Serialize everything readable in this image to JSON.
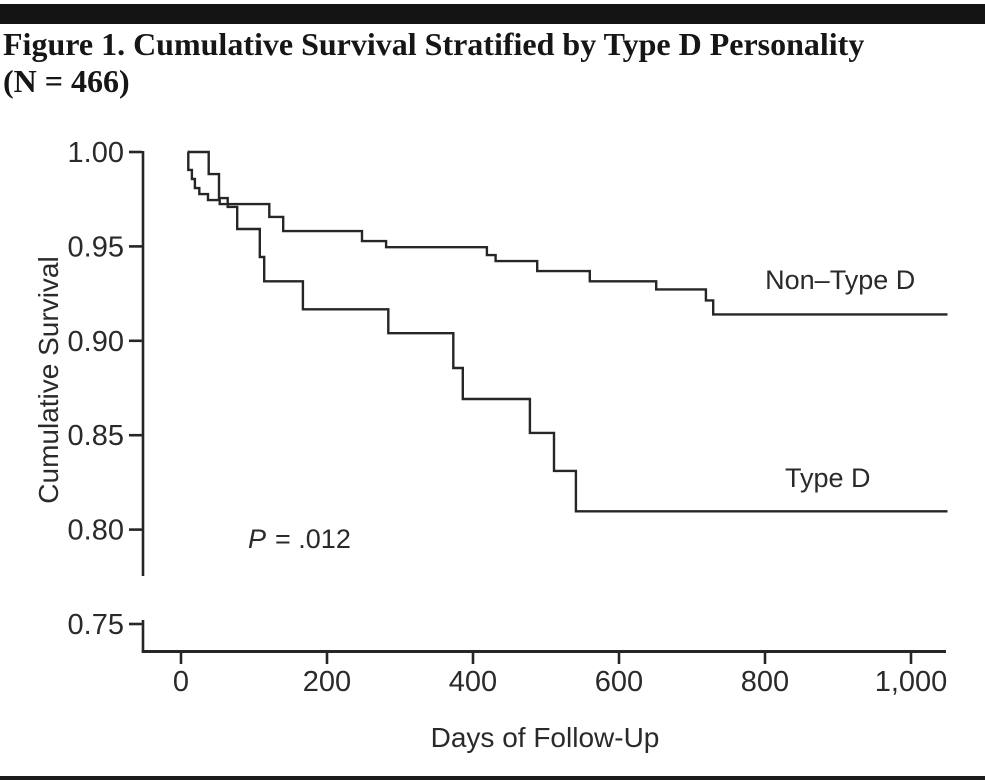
{
  "figure": {
    "title_line1": "Figure 1. Cumulative Survival Stratified by Type D Personality",
    "title_line2": "(N = 466)"
  },
  "chart_data": {
    "type": "line",
    "subtype": "kaplan_meier_step",
    "title": "Figure 1. Cumulative Survival Stratified by Type D Personality (N = 466)",
    "xlabel": "Days of Follow-Up",
    "ylabel": "Cumulative Survival",
    "xlim": [
      -52,
      1055
    ],
    "ylim": [
      0.737,
      1.003
    ],
    "grid": false,
    "legend_position": "inline-labels",
    "x_ticks": [
      0,
      200,
      400,
      600,
      800,
      1000
    ],
    "x_tick_labels": [
      "0",
      "200",
      "400",
      "600",
      "800",
      "1,000"
    ],
    "y_ticks": [
      1.0,
      0.95,
      0.9,
      0.85,
      0.8,
      0.75
    ],
    "y_tick_labels": [
      "1.00",
      "0.95",
      "0.90",
      "0.85",
      "0.80",
      "0.75"
    ],
    "annotation": {
      "p": "P",
      "value": "= .012"
    },
    "end_day": 1050,
    "series": [
      {
        "name": "Non–Type D",
        "label_anchor": {
          "day": 903,
          "value": 0.9327
        },
        "points": [
          [
            9,
            1.0
          ],
          [
            10,
            0.9905
          ],
          [
            15,
            0.9857
          ],
          [
            19,
            0.9809
          ],
          [
            25,
            0.9777
          ],
          [
            37,
            0.9745
          ],
          [
            53,
            0.9724
          ],
          [
            121,
            0.9656
          ],
          [
            140,
            0.9581
          ],
          [
            248,
            0.9528
          ],
          [
            281,
            0.9496
          ],
          [
            419,
            0.9454
          ],
          [
            431,
            0.9422
          ],
          [
            488,
            0.9369
          ],
          [
            560,
            0.9315
          ],
          [
            651,
            0.9272
          ],
          [
            719,
            0.9214
          ],
          [
            729,
            0.914
          ]
        ]
      },
      {
        "name": "Type D",
        "label_anchor": {
          "day": 886,
          "value": 0.8279
        },
        "points": [
          [
            9,
            1.0
          ],
          [
            38,
            0.9883
          ],
          [
            52,
            0.9756
          ],
          [
            64,
            0.9709
          ],
          [
            77,
            0.9592
          ],
          [
            108,
            0.9444
          ],
          [
            114,
            0.9315
          ],
          [
            167,
            0.9167
          ],
          [
            284,
            0.904
          ],
          [
            373,
            0.8856
          ],
          [
            386,
            0.8692
          ],
          [
            478,
            0.8512
          ],
          [
            511,
            0.8311
          ],
          [
            541,
            0.8097
          ]
        ]
      }
    ]
  }
}
